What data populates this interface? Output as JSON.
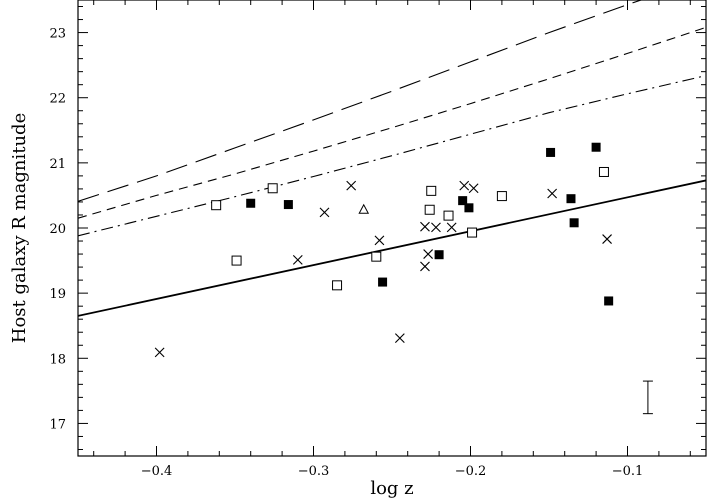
{
  "chart_data": {
    "type": "scatter",
    "title": "",
    "xlabel": "log  z",
    "ylabel": "Host  galaxy  R  magnitude",
    "xlim": [
      -0.45,
      -0.05
    ],
    "ylim": [
      16.5,
      23.5
    ],
    "x_ticks": [
      -0.4,
      -0.3,
      -0.2,
      -0.1
    ],
    "x_tick_labels": [
      "−0.4",
      "−0.3",
      "−0.2",
      "−0.1"
    ],
    "y_ticks": [
      17,
      18,
      19,
      20,
      21,
      22,
      23
    ],
    "y_tick_labels": [
      "17",
      "18",
      "19",
      "20",
      "21",
      "22",
      "23"
    ],
    "grid": false,
    "legend": "none",
    "series": [
      {
        "marker": "filled-square",
        "points": [
          {
            "x": -0.34,
            "y": 20.38
          },
          {
            "x": -0.316,
            "y": 20.36
          },
          {
            "x": -0.256,
            "y": 19.17
          },
          {
            "x": -0.22,
            "y": 19.59
          },
          {
            "x": -0.205,
            "y": 20.42
          },
          {
            "x": -0.201,
            "y": 20.31
          },
          {
            "x": -0.149,
            "y": 21.16
          },
          {
            "x": -0.136,
            "y": 20.45
          },
          {
            "x": -0.134,
            "y": 20.08
          },
          {
            "x": -0.12,
            "y": 21.24
          },
          {
            "x": -0.112,
            "y": 18.88
          }
        ]
      },
      {
        "marker": "open-square",
        "points": [
          {
            "x": -0.362,
            "y": 20.35
          },
          {
            "x": -0.349,
            "y": 19.5
          },
          {
            "x": -0.326,
            "y": 20.61
          },
          {
            "x": -0.285,
            "y": 19.12
          },
          {
            "x": -0.26,
            "y": 19.56
          },
          {
            "x": -0.225,
            "y": 20.57
          },
          {
            "x": -0.226,
            "y": 20.28
          },
          {
            "x": -0.214,
            "y": 20.19
          },
          {
            "x": -0.199,
            "y": 19.93
          },
          {
            "x": -0.18,
            "y": 20.49
          },
          {
            "x": -0.115,
            "y": 20.86
          }
        ]
      },
      {
        "marker": "cross",
        "points": [
          {
            "x": -0.398,
            "y": 18.09
          },
          {
            "x": -0.31,
            "y": 19.51
          },
          {
            "x": -0.293,
            "y": 20.24
          },
          {
            "x": -0.276,
            "y": 20.65
          },
          {
            "x": -0.258,
            "y": 19.81
          },
          {
            "x": -0.245,
            "y": 18.31
          },
          {
            "x": -0.229,
            "y": 20.02
          },
          {
            "x": -0.229,
            "y": 19.41
          },
          {
            "x": -0.227,
            "y": 19.6
          },
          {
            "x": -0.222,
            "y": 20.01
          },
          {
            "x": -0.212,
            "y": 20.01
          },
          {
            "x": -0.204,
            "y": 20.65
          },
          {
            "x": -0.198,
            "y": 20.61
          },
          {
            "x": -0.148,
            "y": 20.53
          },
          {
            "x": -0.113,
            "y": 19.83
          }
        ]
      },
      {
        "marker": "open-triangle",
        "points": [
          {
            "x": -0.268,
            "y": 20.28
          }
        ]
      }
    ],
    "lines": [
      {
        "style": "solid",
        "x": [
          -0.45,
          -0.05
        ],
        "y": [
          18.65,
          20.73
        ]
      },
      {
        "style": "long-dash",
        "x": [
          -0.45,
          -0.4,
          -0.35,
          -0.3,
          -0.25,
          -0.2,
          -0.15,
          -0.1,
          -0.085
        ],
        "y": [
          20.41,
          20.8,
          21.23,
          21.66,
          22.1,
          22.55,
          23.0,
          23.43,
          23.55
        ]
      },
      {
        "style": "short-dash",
        "x": [
          -0.45,
          -0.4,
          -0.35,
          -0.3,
          -0.25,
          -0.2,
          -0.15,
          -0.1,
          -0.05
        ],
        "y": [
          20.15,
          20.5,
          20.83,
          21.18,
          21.54,
          21.91,
          22.29,
          22.68,
          23.08
        ]
      },
      {
        "style": "dash-dot",
        "x": [
          -0.45,
          -0.4,
          -0.35,
          -0.3,
          -0.25,
          -0.2,
          -0.15,
          -0.1,
          -0.05
        ],
        "y": [
          19.88,
          20.18,
          20.48,
          20.79,
          21.11,
          21.44,
          21.77,
          22.06,
          22.34
        ]
      }
    ],
    "error_bar": {
      "x": -0.087,
      "y_low": 17.15,
      "y_high": 17.65
    }
  }
}
